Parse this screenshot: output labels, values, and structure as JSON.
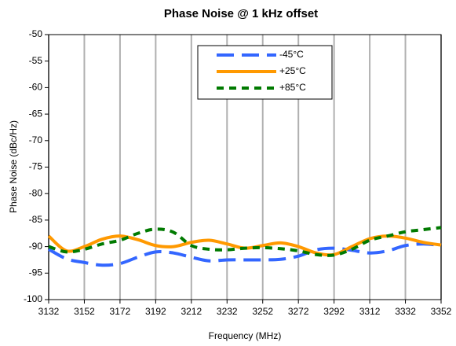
{
  "chart_data": {
    "type": "line",
    "title": "Phase Noise @ 1 kHz offset",
    "x_label": "Frequency (MHz)",
    "y_label": "Phase Noise (dBc/Hz)",
    "x": [
      3132,
      3142,
      3152,
      3162,
      3172,
      3182,
      3192,
      3202,
      3212,
      3222,
      3232,
      3242,
      3252,
      3262,
      3272,
      3282,
      3292,
      3302,
      3312,
      3322,
      3332,
      3342,
      3352
    ],
    "series": [
      {
        "name": "-45°C",
        "color": "#3366ff",
        "dash": "dashed",
        "values": [
          -90.5,
          -92.3,
          -93,
          -93.5,
          -93.2,
          -92,
          -91,
          -91.2,
          -92,
          -92.7,
          -92.5,
          -92.5,
          -92.5,
          -92.4,
          -91.8,
          -90.6,
          -90.3,
          -90.7,
          -91.2,
          -90.8,
          -89.8,
          -89.5,
          -89.8
        ]
      },
      {
        "name": "+25°C",
        "color": "#ff9900",
        "dash": "solid",
        "values": [
          -88,
          -90.8,
          -90,
          -88.6,
          -88,
          -88.7,
          -89.8,
          -90,
          -89.2,
          -88.8,
          -89.5,
          -90.3,
          -89.8,
          -89.3,
          -90,
          -91.2,
          -91.5,
          -90,
          -88.5,
          -88,
          -88.4,
          -89.2,
          -89.7
        ]
      },
      {
        "name": "+85°C",
        "color": "#007a00",
        "dash": "dotted",
        "values": [
          -90,
          -91,
          -90.5,
          -89.5,
          -88.8,
          -87.5,
          -86.7,
          -87.3,
          -89.8,
          -90.5,
          -90.6,
          -90.3,
          -90.2,
          -90.4,
          -90.8,
          -91.5,
          -91.6,
          -90.5,
          -88.8,
          -88,
          -87.2,
          -86.8,
          -86.4
        ]
      }
    ],
    "xlim": [
      3132,
      3352
    ],
    "xticks": [
      3132,
      3152,
      3172,
      3192,
      3212,
      3232,
      3252,
      3272,
      3292,
      3312,
      3332,
      3352
    ],
    "ylim": [
      -100,
      -50
    ],
    "yticks": [
      -100,
      -95,
      -90,
      -85,
      -80,
      -75,
      -70,
      -65,
      -60,
      -55,
      -50
    ],
    "grid": "x"
  }
}
